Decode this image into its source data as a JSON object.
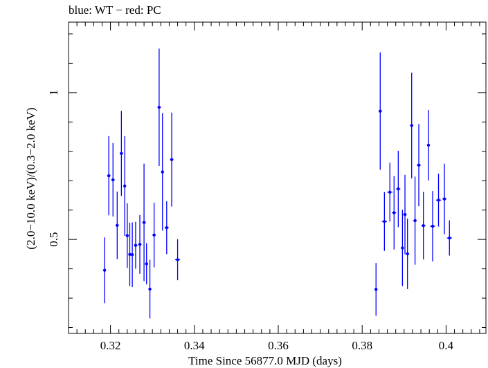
{
  "chart_data": {
    "type": "scatter",
    "title": "blue: WT − red: PC",
    "xlabel": "Time Since 56877.0 MJD (days)",
    "ylabel": "(2.0−10.0 keV)/(0.3−2.0 keV)",
    "xlim": [
      0.31,
      0.4095
    ],
    "ylim": [
      0.18,
      1.24
    ],
    "x_ticks": [
      {
        "value": 0.32,
        "label": "0.32"
      },
      {
        "value": 0.34,
        "label": "0.34"
      },
      {
        "value": 0.36,
        "label": "0.36"
      },
      {
        "value": 0.38,
        "label": "0.38"
      },
      {
        "value": 0.4,
        "label": "0.4"
      }
    ],
    "y_ticks": [
      {
        "value": 0.5,
        "label": "0.5"
      },
      {
        "value": 1.0,
        "label": "1"
      }
    ],
    "grid": false,
    "series": [
      {
        "name": "WT",
        "color": "#0000ff",
        "points": [
          {
            "x": 0.3186,
            "y": 0.395,
            "xerr": 0.0003,
            "yerr": 0.112
          },
          {
            "x": 0.3196,
            "y": 0.717,
            "xerr": 0.0004,
            "yerr": 0.135
          },
          {
            "x": 0.3206,
            "y": 0.703,
            "xerr": 0.0004,
            "yerr": 0.125
          },
          {
            "x": 0.3216,
            "y": 0.548,
            "xerr": 0.0004,
            "yerr": 0.115
          },
          {
            "x": 0.3226,
            "y": 0.793,
            "xerr": 0.0004,
            "yerr": 0.145
          },
          {
            "x": 0.3234,
            "y": 0.682,
            "xerr": 0.0003,
            "yerr": 0.17
          },
          {
            "x": 0.324,
            "y": 0.513,
            "xerr": 0.0003,
            "yerr": 0.11
          },
          {
            "x": 0.3246,
            "y": 0.449,
            "xerr": 0.0003,
            "yerr": 0.108
          },
          {
            "x": 0.3252,
            "y": 0.448,
            "xerr": 0.0003,
            "yerr": 0.11
          },
          {
            "x": 0.326,
            "y": 0.48,
            "xerr": 0.0004,
            "yerr": 0.08
          },
          {
            "x": 0.327,
            "y": 0.483,
            "xerr": 0.0004,
            "yerr": 0.1
          },
          {
            "x": 0.328,
            "y": 0.558,
            "xerr": 0.0004,
            "yerr": 0.2
          },
          {
            "x": 0.3286,
            "y": 0.417,
            "xerr": 0.0003,
            "yerr": 0.07
          },
          {
            "x": 0.3294,
            "y": 0.331,
            "xerr": 0.0003,
            "yerr": 0.1
          },
          {
            "x": 0.3304,
            "y": 0.515,
            "xerr": 0.0004,
            "yerr": 0.11
          },
          {
            "x": 0.3316,
            "y": 0.95,
            "xerr": 0.0004,
            "yerr": 0.2
          },
          {
            "x": 0.3324,
            "y": 0.73,
            "xerr": 0.0003,
            "yerr": 0.2
          },
          {
            "x": 0.3334,
            "y": 0.54,
            "xerr": 0.0005,
            "yerr": 0.09
          },
          {
            "x": 0.3346,
            "y": 0.772,
            "xerr": 0.0004,
            "yerr": 0.16
          },
          {
            "x": 0.336,
            "y": 0.431,
            "xerr": 0.0006,
            "yerr": 0.07
          },
          {
            "x": 0.3833,
            "y": 0.33,
            "xerr": 0.0003,
            "yerr": 0.09
          },
          {
            "x": 0.3843,
            "y": 0.937,
            "xerr": 0.0004,
            "yerr": 0.2
          },
          {
            "x": 0.3853,
            "y": 0.561,
            "xerr": 0.0006,
            "yerr": 0.1
          },
          {
            "x": 0.3866,
            "y": 0.661,
            "xerr": 0.0006,
            "yerr": 0.1
          },
          {
            "x": 0.3876,
            "y": 0.591,
            "xerr": 0.0005,
            "yerr": 0.125
          },
          {
            "x": 0.3886,
            "y": 0.672,
            "xerr": 0.0005,
            "yerr": 0.13
          },
          {
            "x": 0.3896,
            "y": 0.471,
            "xerr": 0.0003,
            "yerr": 0.13
          },
          {
            "x": 0.3902,
            "y": 0.585,
            "xerr": 0.0004,
            "yerr": 0.135
          },
          {
            "x": 0.3908,
            "y": 0.451,
            "xerr": 0.0004,
            "yerr": 0.12
          },
          {
            "x": 0.3918,
            "y": 0.888,
            "xerr": 0.0004,
            "yerr": 0.18
          },
          {
            "x": 0.3926,
            "y": 0.564,
            "xerr": 0.0004,
            "yerr": 0.15
          },
          {
            "x": 0.3935,
            "y": 0.753,
            "xerr": 0.0005,
            "yerr": 0.14
          },
          {
            "x": 0.3946,
            "y": 0.547,
            "xerr": 0.0005,
            "yerr": 0.115
          },
          {
            "x": 0.3958,
            "y": 0.821,
            "xerr": 0.0003,
            "yerr": 0.12
          },
          {
            "x": 0.3968,
            "y": 0.545,
            "xerr": 0.0006,
            "yerr": 0.12
          },
          {
            "x": 0.3982,
            "y": 0.634,
            "xerr": 0.0006,
            "yerr": 0.09
          },
          {
            "x": 0.3996,
            "y": 0.638,
            "xerr": 0.0005,
            "yerr": 0.12
          },
          {
            "x": 0.4008,
            "y": 0.505,
            "xerr": 0.0006,
            "yerr": 0.06
          }
        ]
      }
    ]
  }
}
